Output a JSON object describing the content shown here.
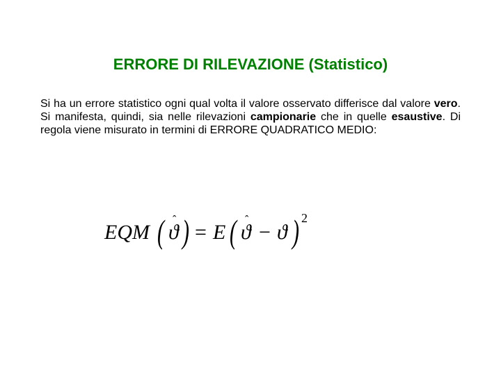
{
  "title": {
    "text": "ERRORE DI RILEVAZIONE (Statistico)",
    "color": "#008000",
    "fontsize": 22
  },
  "paragraph": {
    "fontsize": 16,
    "color": "#000000",
    "segments": [
      {
        "t": "Si ha un errore statistico ogni qual volta il valore osservato differisce dal valore ",
        "b": false
      },
      {
        "t": "vero",
        "b": true
      },
      {
        "t": ". Si manifesta, quindi, sia nelle rilevazioni ",
        "b": false
      },
      {
        "t": "campionarie",
        "b": true
      },
      {
        "t": " che in quelle ",
        "b": false
      },
      {
        "t": "esaustive",
        "b": true
      },
      {
        "t": ". Di regola viene misurato in termini di ERRORE QUADRATICO MEDIO:",
        "b": false
      }
    ]
  },
  "formula": {
    "color": "#000000",
    "eqm": "EQM",
    "lp1": "(",
    "theta_hat_1": "ϑ",
    "hat1": "ˆ",
    "rp1": ")",
    "eq": "=",
    "E": "E",
    "lp2": "(",
    "theta_hat_2": "ϑ",
    "hat2": "ˆ",
    "minus": "−",
    "theta": "ϑ",
    "rp2": ")",
    "sq": "2"
  }
}
